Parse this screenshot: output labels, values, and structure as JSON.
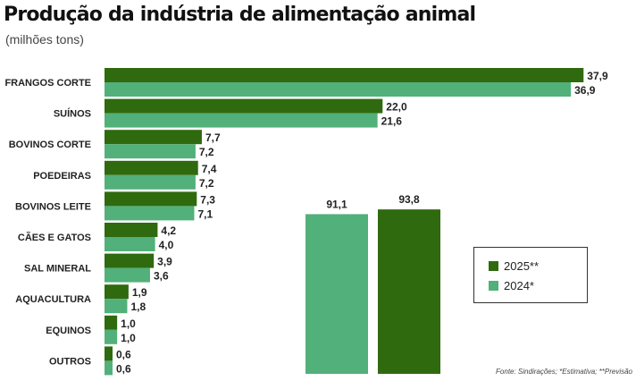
{
  "title": "Produção da indústria de alimentação animal",
  "subtitle": "(milhões tons)",
  "source": "Fonte: Sindirações; *Estimativa; **Previsão",
  "colors": {
    "dark": "#2f6a0f",
    "light": "#52b07a"
  },
  "legend": {
    "items": [
      {
        "label": "2025**",
        "color": "#2f6a0f"
      },
      {
        "label": "2024*",
        "color": "#52b07a"
      }
    ]
  },
  "chart_data": [
    {
      "type": "bar",
      "orientation": "horizontal",
      "categories": [
        "FRANGOS CORTE",
        "SUÍNOS",
        "BOVINOS CORTE",
        "POEDEIRAS",
        "BOVINOS LEITE",
        "CÃES E GATOS",
        "SAL MINERAL",
        "AQUACULTURA",
        "EQUINOS",
        "OUTROS"
      ],
      "series": [
        {
          "name": "2025**",
          "values": [
            37.9,
            22.0,
            7.7,
            7.4,
            7.3,
            4.2,
            3.9,
            1.9,
            1.0,
            0.6
          ],
          "labels": [
            "37,9",
            "22,0",
            "7,7",
            "7,4",
            "7,3",
            "4,2",
            "3,9",
            "1,9",
            "1,0",
            "0,6"
          ]
        },
        {
          "name": "2024*",
          "values": [
            36.9,
            21.6,
            7.2,
            7.2,
            7.1,
            4.0,
            3.6,
            1.8,
            1.0,
            0.6
          ],
          "labels": [
            "36,9",
            "21,6",
            "7,2",
            "7,2",
            "7,1",
            "4,0",
            "3,6",
            "1,8",
            "1,0",
            "0,6"
          ]
        }
      ]
    },
    {
      "type": "bar",
      "orientation": "vertical",
      "categories": [
        "2024*",
        "2025**"
      ],
      "values": [
        91.1,
        93.8
      ],
      "labels": [
        "91,1",
        "93,8"
      ]
    }
  ]
}
